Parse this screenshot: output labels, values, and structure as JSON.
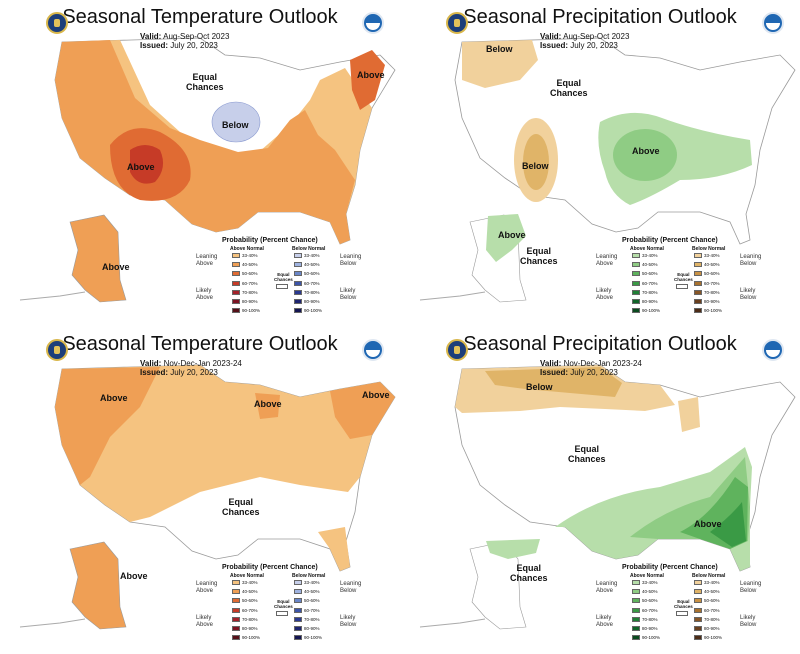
{
  "panels": [
    {
      "title": "Seasonal Temperature Outlook",
      "valid_label": "Valid:",
      "valid": "Aug-Sep-Oct 2023",
      "issued_label": "Issued:",
      "issued": "July 20, 2023",
      "map_labels": {
        "a": "Equal\nChances",
        "b": "Below",
        "c": "Above",
        "d": "Above",
        "e": "Above"
      },
      "legend": {
        "title": "Probability (Percent Chance)",
        "col1": "Above Normal",
        "col2": "Below Normal",
        "side1a": "Leaning\nAbove",
        "side1b": "Likely\nAbove",
        "side2a": "Leaning\nBelow",
        "side2b": "Likely\nBelow",
        "equal": "Equal\nChances",
        "ranges": [
          "33-40%",
          "40-50%",
          "50-60%",
          "60-70%",
          "70-80%",
          "80-90%",
          "90-100%"
        ],
        "colors1": [
          "#f5c380",
          "#ef9f55",
          "#e06b33",
          "#c63b27",
          "#a3222a",
          "#7c1423",
          "#551018"
        ],
        "colors2": [
          "#c7cfea",
          "#9fb3e0",
          "#6a86c8",
          "#3d55a8",
          "#2a3990",
          "#1e2470",
          "#141551"
        ]
      }
    },
    {
      "title": "Seasonal Precipitation Outlook",
      "valid_label": "Valid:",
      "valid": "Aug-Sep-Oct 2023",
      "issued_label": "Issued:",
      "issued": "July 20, 2023",
      "map_labels": {
        "a": "Below",
        "b": "Equal\nChances",
        "c": "Below",
        "d": "Above",
        "e": "Above",
        "f": "Equal\nChances"
      },
      "legend": {
        "title": "Probability (Percent Chance)",
        "col1": "Above Normal",
        "col2": "Below Normal",
        "side1a": "Leaning\nAbove",
        "side1b": "Likely\nAbove",
        "side2a": "Leaning\nBelow",
        "side2b": "Likely\nBelow",
        "equal": "Equal\nChances",
        "ranges": [
          "33-40%",
          "40-50%",
          "50-60%",
          "60-70%",
          "70-80%",
          "80-90%",
          "90-100%"
        ],
        "colors1": [
          "#b7deaa",
          "#8fcc84",
          "#5fb35d",
          "#3a9a45",
          "#217f36",
          "#116429",
          "#0a4a1e"
        ],
        "colors2": [
          "#f1d19c",
          "#e0b468",
          "#c99245",
          "#a8722f",
          "#875627",
          "#693f1f",
          "#4c2c17"
        ]
      }
    },
    {
      "title": "Seasonal Temperature Outlook",
      "valid_label": "Valid:",
      "valid": "Nov-Dec-Jan 2023-24",
      "issued_label": "Issued:",
      "issued": "July 20, 2023",
      "map_labels": {
        "a": "Above",
        "b": "Above",
        "c": "Above",
        "d": "Equal\nChances",
        "e": "Above"
      },
      "legend": {
        "title": "Probability (Percent Chance)",
        "col1": "Above Normal",
        "col2": "Below Normal",
        "side1a": "Leaning\nAbove",
        "side1b": "Likely\nAbove",
        "side2a": "Leaning\nBelow",
        "side2b": "Likely\nBelow",
        "equal": "Equal\nChances",
        "ranges": [
          "33-40%",
          "40-50%",
          "50-60%",
          "60-70%",
          "70-80%",
          "80-90%",
          "90-100%"
        ],
        "colors1": [
          "#f5c380",
          "#ef9f55",
          "#e06b33",
          "#c63b27",
          "#a3222a",
          "#7c1423",
          "#551018"
        ],
        "colors2": [
          "#c7cfea",
          "#9fb3e0",
          "#6a86c8",
          "#3d55a8",
          "#2a3990",
          "#1e2470",
          "#141551"
        ]
      }
    },
    {
      "title": "Seasonal Precipitation Outlook",
      "valid_label": "Valid:",
      "valid": "Nov-Dec-Jan 2023-24",
      "issued_label": "Issued:",
      "issued": "July 20, 2023",
      "map_labels": {
        "a": "Below",
        "b": "Equal\nChances",
        "c": "Above",
        "d": "Equal\nChances"
      },
      "legend": {
        "title": "Probability (Percent Chance)",
        "col1": "Above Normal",
        "col2": "Below Normal",
        "side1a": "Leaning\nAbove",
        "side1b": "Likely\nAbove",
        "side2a": "Leaning\nBelow",
        "side2b": "Likely\nBelow",
        "equal": "Equal\nChances",
        "ranges": [
          "33-40%",
          "40-50%",
          "50-60%",
          "60-70%",
          "70-80%",
          "80-90%",
          "90-100%"
        ],
        "colors1": [
          "#b7deaa",
          "#8fcc84",
          "#5fb35d",
          "#3a9a45",
          "#217f36",
          "#116429",
          "#0a4a1e"
        ],
        "colors2": [
          "#f1d19c",
          "#e0b468",
          "#c99245",
          "#a8722f",
          "#875627",
          "#693f1f",
          "#4c2c17"
        ]
      }
    }
  ]
}
